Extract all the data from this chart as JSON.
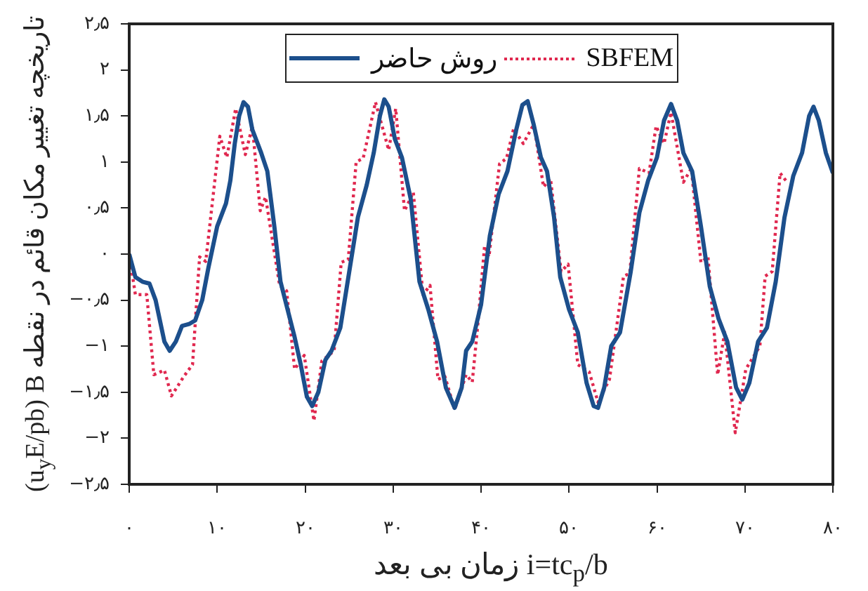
{
  "chart_data": {
    "type": "line",
    "xlabel": "زمان بی بعد i=tc$_{p}$/b",
    "ylabel": "(u$_{y}$E/pb) B تاریخچه تغییر مکان قائم در نقطه",
    "xlim": [
      0,
      80
    ],
    "xticks": [
      {
        "value": 0,
        "label": "۰"
      },
      {
        "value": 10,
        "label": "۱۰"
      },
      {
        "value": 20,
        "label": "۲۰"
      },
      {
        "value": 30,
        "label": "۳۰"
      },
      {
        "value": 40,
        "label": "۴۰"
      },
      {
        "value": 50,
        "label": "۵۰"
      },
      {
        "value": 60,
        "label": "۶۰"
      },
      {
        "value": 70,
        "label": "۷۰"
      },
      {
        "value": 80,
        "label": "۸۰"
      }
    ],
    "ylim": [
      -2.5,
      2.5
    ],
    "yticks": [
      {
        "value": -2.5,
        "label": "−۲٫۵"
      },
      {
        "value": -2,
        "label": "−۲"
      },
      {
        "value": -1.5,
        "label": "−۱٫۵"
      },
      {
        "value": -1,
        "label": "−۱"
      },
      {
        "value": -0.5,
        "label": "−۰٫۵"
      },
      {
        "value": 0,
        "label": "۰"
      },
      {
        "value": 0.5,
        "label": "۰٫۵"
      },
      {
        "value": 1,
        "label": "۱"
      },
      {
        "value": 1.5,
        "label": "۱٫۵"
      },
      {
        "value": 2,
        "label": "۲"
      },
      {
        "value": 2.5,
        "label": "۲٫۵"
      }
    ],
    "grid": false,
    "legend": "top",
    "marker": "none",
    "series": [
      {
        "name": "روش حاضر",
        "color": "#1c4f8c",
        "line_style": "solid",
        "x": [
          0,
          0.7,
          1.5,
          2.3,
          3,
          4,
          4.6,
          5.3,
          6,
          6.8,
          7.5,
          8.3,
          9,
          10,
          11,
          11.5,
          12,
          12.5,
          13,
          13.5,
          14,
          15,
          15.7,
          16.5,
          17.2,
          18,
          18.8,
          19.5,
          20.2,
          20.8,
          21.5,
          22.3,
          23,
          24,
          25,
          26,
          27,
          27.8,
          28.5,
          29,
          29.5,
          30.2,
          31,
          32,
          33,
          34,
          35,
          36,
          37,
          37.8,
          38.3,
          39,
          40,
          41,
          42,
          43,
          44,
          44.7,
          45.3,
          46,
          46.8,
          47.5,
          48.3,
          49,
          50,
          51,
          52,
          52.8,
          53.3,
          54,
          54.8,
          55.8,
          57,
          58,
          59,
          60,
          60.8,
          61.6,
          62.3,
          63,
          64,
          65,
          66,
          67,
          68,
          69,
          69.7,
          70.5,
          71.5,
          72.5,
          73.5,
          74.5,
          75.5,
          76.5,
          77.3,
          77.8,
          78.4,
          79.2,
          80
        ],
        "values": [
          0,
          -0.25,
          -0.3,
          -0.32,
          -0.5,
          -0.95,
          -1.05,
          -0.95,
          -0.78,
          -0.76,
          -0.72,
          -0.5,
          -0.15,
          0.3,
          0.55,
          0.8,
          1.2,
          1.5,
          1.65,
          1.6,
          1.35,
          1.1,
          0.9,
          0.3,
          -0.3,
          -0.6,
          -0.9,
          -1.2,
          -1.55,
          -1.65,
          -1.5,
          -1.15,
          -1.05,
          -0.8,
          -0.2,
          0.4,
          0.75,
          1.1,
          1.5,
          1.68,
          1.6,
          1.25,
          1.05,
          0.6,
          -0.3,
          -0.6,
          -0.95,
          -1.45,
          -1.67,
          -1.45,
          -1.05,
          -0.95,
          -0.55,
          0.2,
          0.65,
          0.9,
          1.35,
          1.62,
          1.66,
          1.4,
          1.05,
          0.9,
          0.4,
          -0.25,
          -0.6,
          -0.85,
          -1.4,
          -1.65,
          -1.67,
          -1.45,
          -1,
          -0.85,
          -0.2,
          0.45,
          0.8,
          1.05,
          1.45,
          1.63,
          1.45,
          1.1,
          0.9,
          0.3,
          -0.35,
          -0.7,
          -0.95,
          -1.45,
          -1.58,
          -1.4,
          -0.95,
          -0.8,
          -0.3,
          0.4,
          0.85,
          1.1,
          1.5,
          1.6,
          1.45,
          1.1,
          0.88
        ]
      },
      {
        "name": "SBFEM",
        "color": "#e0284f",
        "line_style": "dotted",
        "x": [
          0,
          0.7,
          2,
          2.8,
          4,
          4.8,
          6.2,
          7.2,
          8,
          8.7,
          10.3,
          11.1,
          12.1,
          13.2,
          14,
          14.9,
          15.5,
          17.1,
          17.9,
          18.8,
          19.9,
          21,
          21.9,
          23.3,
          24.1,
          24.9,
          25.8,
          26.6,
          28,
          29.5,
          30.3,
          31.3,
          32.3,
          33.4,
          34.2,
          35.1,
          35.9,
          37,
          38.3,
          39,
          39.6,
          40.4,
          40.9,
          42.1,
          42.9,
          43.7,
          44.8,
          46,
          47.1,
          47.9,
          49.1,
          49.9,
          51,
          52.3,
          53.3,
          54.6,
          56.2,
          56.9,
          58,
          59.1,
          59.9,
          60.8,
          61.6,
          63,
          63.9,
          65,
          65.8,
          66.9,
          67.7,
          68.9,
          70.1,
          71.7,
          72.3,
          73.1,
          74,
          74.8
        ],
        "values": [
          0,
          -0.44,
          -0.44,
          -1.31,
          -1.26,
          -1.54,
          -1.33,
          -1.2,
          -0.03,
          -0.08,
          1.28,
          1.05,
          1.58,
          1.08,
          1.39,
          0.47,
          0.62,
          -0.34,
          -0.4,
          -1.25,
          -1.1,
          -1.81,
          -1.16,
          -1.05,
          -0.09,
          -0.06,
          1,
          1.04,
          1.65,
          1.13,
          1.58,
          0.47,
          0.67,
          -0.44,
          -0.34,
          -1.36,
          -1.33,
          -1.69,
          -1.31,
          -1.39,
          -0.8,
          0.09,
          -0.03,
          0.98,
          1.04,
          1.36,
          1.2,
          1.41,
          0.73,
          0.82,
          -0.19,
          -0.11,
          -1.2,
          -1.28,
          -1.61,
          -1.36,
          -0.24,
          -0.21,
          0.93,
          0.88,
          1.39,
          1.2,
          1.54,
          0.78,
          0.93,
          -0.09,
          -0.03,
          -1.31,
          -0.85,
          -1.94,
          -1.25,
          -1,
          -0.24,
          -0.19,
          0.88,
          0.78
        ]
      }
    ]
  }
}
